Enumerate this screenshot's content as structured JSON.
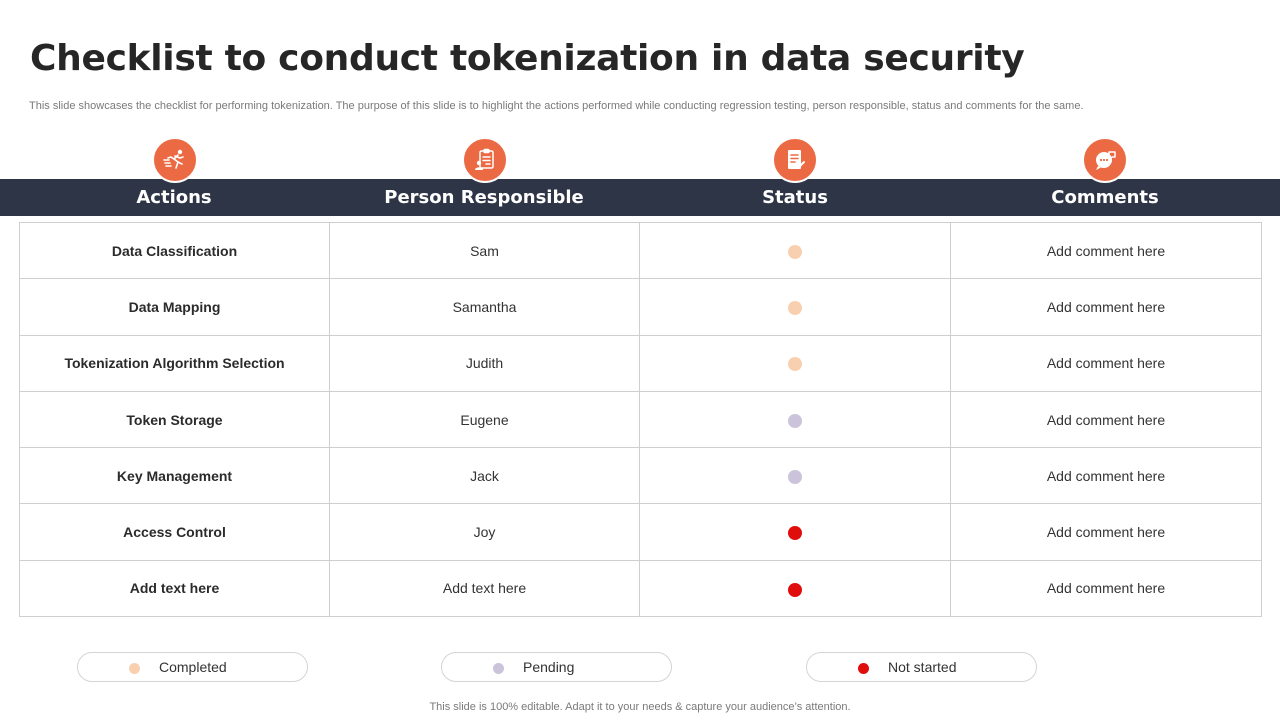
{
  "slide": {
    "title": "Checklist to conduct tokenization in data security",
    "subtitle": "This slide showcases the checklist for performing tokenization. The purpose of this slide is to highlight the actions performed while conducting regression testing, person responsible, status and comments for the same.",
    "footer": "This slide is 100% editable. Adapt it to your needs & capture your audience’s attention."
  },
  "colors": {
    "accent": "#ec6a43",
    "header_bg": "#2e3547",
    "completed": "#f8d0b0",
    "pending": "#cbc3da",
    "not_started": "#e00d0d"
  },
  "table": {
    "headers": [
      {
        "label": "Actions",
        "icon": "running-person-icon"
      },
      {
        "label": "Person Responsible",
        "icon": "clipboard-person-icon"
      },
      {
        "label": "Status",
        "icon": "document-check-icon"
      },
      {
        "label": "Comments",
        "icon": "chat-bubble-icon"
      }
    ],
    "rows": [
      {
        "action": "Data Classification",
        "person": "Sam",
        "status": "completed",
        "comment": "Add comment here"
      },
      {
        "action": "Data Mapping",
        "person": "Samantha",
        "status": "completed",
        "comment": "Add comment here"
      },
      {
        "action": "Tokenization Algorithm Selection",
        "person": "Judith",
        "status": "completed",
        "comment": "Add comment here"
      },
      {
        "action": "Token Storage",
        "person": "Eugene",
        "status": "pending",
        "comment": "Add comment here"
      },
      {
        "action": "Key Management",
        "person": "Jack",
        "status": "pending",
        "comment": "Add comment here"
      },
      {
        "action": "Access Control",
        "person": "Joy",
        "status": "not_started",
        "comment": "Add comment here"
      },
      {
        "action": "Add text here",
        "person": "Add text here",
        "status": "not_started",
        "comment": "Add comment here"
      }
    ]
  },
  "legend": [
    {
      "key": "completed",
      "label": "Completed"
    },
    {
      "key": "pending",
      "label": "Pending"
    },
    {
      "key": "not_started",
      "label": "Not started"
    }
  ]
}
